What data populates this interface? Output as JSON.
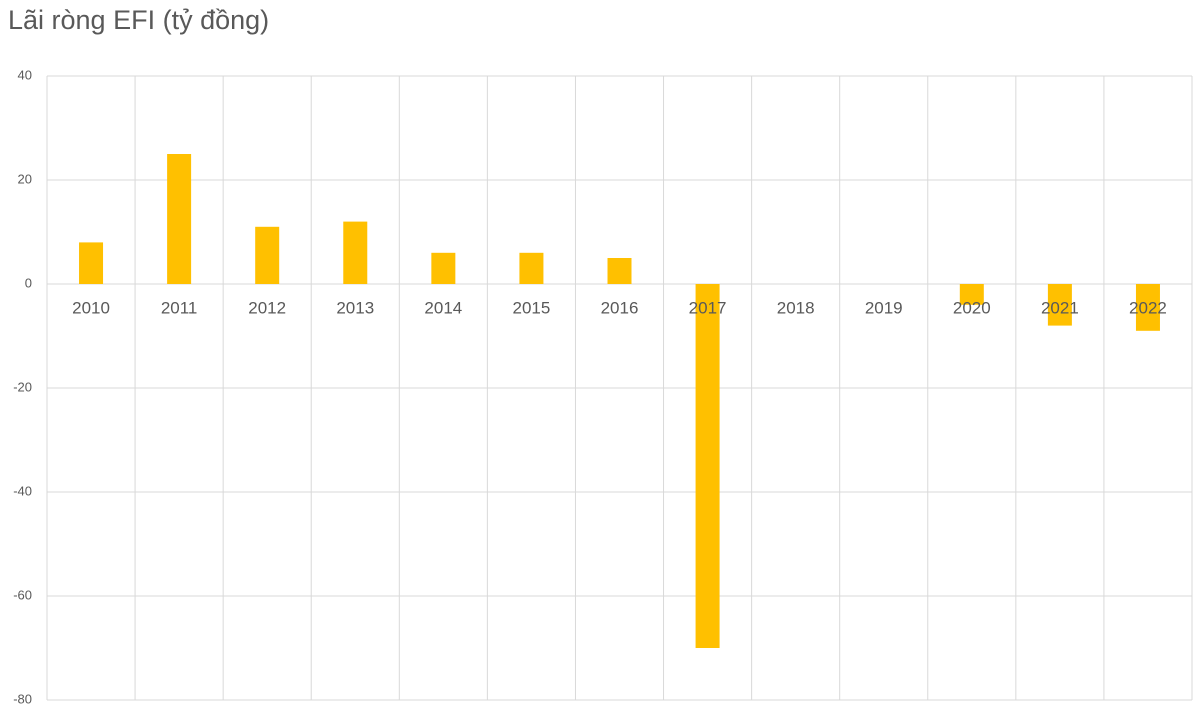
{
  "chart_data": {
    "type": "bar",
    "title": "Lãi ròng EFI (tỷ đồng)",
    "categories": [
      "2010",
      "2011",
      "2012",
      "2013",
      "2014",
      "2015",
      "2016",
      "2017",
      "2018",
      "2019",
      "2020",
      "2021",
      "2022"
    ],
    "values": [
      8,
      25,
      11,
      12,
      6,
      6,
      5,
      -70,
      0,
      0,
      -4,
      -8,
      -9
    ],
    "color": "#ffc000",
    "ylim": [
      -80,
      40
    ],
    "yticks": [
      -80,
      -60,
      -40,
      -20,
      0,
      20,
      40
    ],
    "grid": true
  }
}
